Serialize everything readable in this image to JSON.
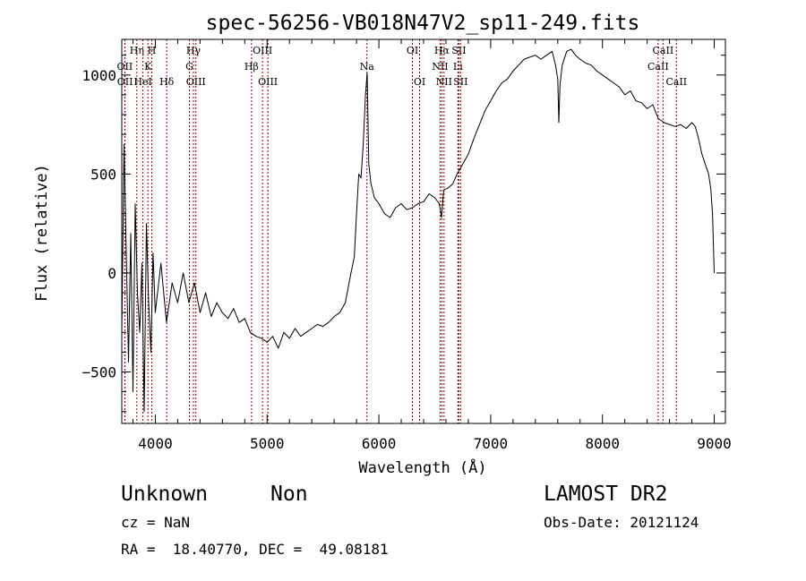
{
  "chart_data": {
    "type": "line",
    "title": "spec-56256-VB018N47V2_sp11-249.fits",
    "xlabel": "Wavelength (Å)",
    "ylabel": "Flux (relative)",
    "xlim": [
      3700,
      9100
    ],
    "ylim": [
      -760,
      1180
    ],
    "x_ticks": [
      4000,
      5000,
      6000,
      7000,
      8000,
      9000
    ],
    "x_tick_labels": [
      "4000",
      "5000",
      "6000",
      "7000",
      "8000",
      "9000"
    ],
    "y_ticks": [
      -500,
      0,
      500,
      1000
    ],
    "y_tick_labels": [
      "−500",
      "0",
      "500",
      "1000"
    ],
    "grid": false,
    "series": [
      {
        "color": "#000000",
        "x": [
          3700,
          3720,
          3740,
          3760,
          3780,
          3800,
          3820,
          3840,
          3860,
          3880,
          3900,
          3920,
          3940,
          3960,
          3980,
          4000,
          4050,
          4100,
          4150,
          4200,
          4250,
          4300,
          4350,
          4400,
          4450,
          4500,
          4550,
          4600,
          4650,
          4700,
          4750,
          4800,
          4850,
          4900,
          4950,
          5000,
          5050,
          5100,
          5150,
          5200,
          5250,
          5300,
          5350,
          5400,
          5450,
          5500,
          5550,
          5600,
          5650,
          5700,
          5750,
          5780,
          5800,
          5820,
          5840,
          5860,
          5880,
          5895,
          5910,
          5930,
          5960,
          6000,
          6050,
          6100,
          6150,
          6200,
          6250,
          6300,
          6350,
          6400,
          6450,
          6500,
          6540,
          6560,
          6580,
          6620,
          6660,
          6700,
          6750,
          6800,
          6850,
          6900,
          6950,
          7000,
          7050,
          7100,
          7150,
          7200,
          7250,
          7300,
          7350,
          7400,
          7450,
          7500,
          7550,
          7580,
          7600,
          7610,
          7620,
          7640,
          7680,
          7720,
          7760,
          7800,
          7850,
          7900,
          7950,
          8000,
          8050,
          8100,
          8150,
          8200,
          8250,
          8300,
          8350,
          8400,
          8450,
          8500,
          8550,
          8600,
          8650,
          8700,
          8750,
          8800,
          8830,
          8860,
          8890,
          8920,
          8950,
          8970,
          8985,
          9000
        ],
        "y": [
          -300,
          650,
          100,
          -450,
          200,
          -600,
          350,
          -100,
          -300,
          50,
          -700,
          250,
          -150,
          -400,
          100,
          -200,
          50,
          -250,
          -50,
          -150,
          0,
          -150,
          -50,
          -200,
          -100,
          -220,
          -150,
          -200,
          -230,
          -180,
          -250,
          -230,
          -300,
          -320,
          -330,
          -350,
          -320,
          -380,
          -300,
          -330,
          -280,
          -320,
          -300,
          -280,
          -260,
          -270,
          -250,
          -220,
          -200,
          -150,
          0,
          80,
          300,
          500,
          480,
          650,
          900,
          1010,
          550,
          450,
          380,
          350,
          300,
          280,
          330,
          350,
          320,
          330,
          350,
          360,
          400,
          380,
          350,
          280,
          420,
          430,
          450,
          500,
          550,
          600,
          680,
          750,
          820,
          870,
          920,
          960,
          980,
          1020,
          1050,
          1080,
          1090,
          1100,
          1080,
          1100,
          1120,
          1050,
          980,
          760,
          950,
          1050,
          1120,
          1130,
          1100,
          1080,
          1060,
          1050,
          1020,
          1000,
          980,
          960,
          940,
          900,
          920,
          870,
          860,
          830,
          850,
          780,
          760,
          750,
          740,
          750,
          730,
          760,
          740,
          680,
          600,
          550,
          500,
          420,
          300,
          0
        ]
      }
    ],
    "line_markers": [
      {
        "name": "OII",
        "wavelength": 3727,
        "row": 1
      },
      {
        "name": "OII",
        "wavelength": 3729,
        "row": 2
      },
      {
        "name": "Hη",
        "wavelength": 3835,
        "row": 0
      },
      {
        "name": "HeI",
        "wavelength": 3889,
        "row": 2
      },
      {
        "name": "K",
        "wavelength": 3934,
        "row": 1
      },
      {
        "name": "H",
        "wavelength": 3969,
        "row": 0
      },
      {
        "name": "Hδ",
        "wavelength": 4102,
        "row": 2
      },
      {
        "name": "G",
        "wavelength": 4305,
        "row": 1
      },
      {
        "name": "Hγ",
        "wavelength": 4341,
        "row": 0
      },
      {
        "name": "OIII",
        "wavelength": 4363,
        "row": 2
      },
      {
        "name": "Hβ",
        "wavelength": 4861,
        "row": 1
      },
      {
        "name": "OIII",
        "wavelength": 4959,
        "row": 0
      },
      {
        "name": "OIII",
        "wavelength": 5007,
        "row": 2
      },
      {
        "name": "Na",
        "wavelength": 5893,
        "row": 1
      },
      {
        "name": "OI",
        "wavelength": 6300,
        "row": 0
      },
      {
        "name": "OI",
        "wavelength": 6364,
        "row": 2
      },
      {
        "name": "NII",
        "wavelength": 6548,
        "row": 1
      },
      {
        "name": "Hα",
        "wavelength": 6563,
        "row": 0
      },
      {
        "name": "NII",
        "wavelength": 6583,
        "row": 2
      },
      {
        "name": "Li",
        "wavelength": 6707,
        "row": 1
      },
      {
        "name": "SII",
        "wavelength": 6716,
        "row": 0
      },
      {
        "name": "SII",
        "wavelength": 6731,
        "row": 2
      },
      {
        "name": "CaII",
        "wavelength": 8498,
        "row": 1
      },
      {
        "name": "CaII",
        "wavelength": 8542,
        "row": 0
      },
      {
        "name": "CaII",
        "wavelength": 8662,
        "row": 2
      }
    ],
    "marker_line_color": "#990000"
  },
  "info": {
    "object_class": "Unknown",
    "subclass": "Non",
    "survey": "LAMOST DR2",
    "redshift": "cz = NaN",
    "obs_date": "Obs-Date: 20121124",
    "coordinates": "RA =  18.40770, DEC =  49.08181"
  }
}
